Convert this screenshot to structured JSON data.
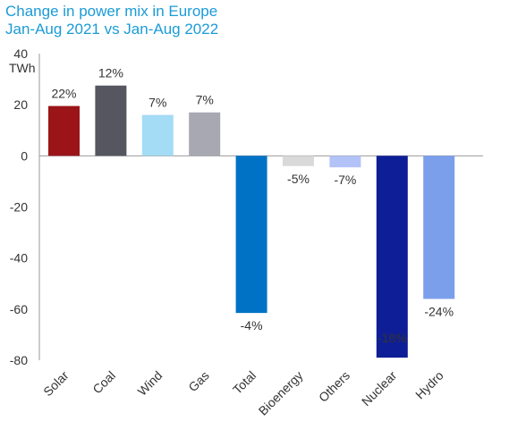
{
  "title": "Change in power mix in Europe",
  "subtitle": "Jan-Aug 2021 vs Jan-Aug 2022",
  "chart_data": {
    "type": "bar",
    "ylabel": "TWh",
    "ylim": [
      -80,
      40
    ],
    "yticks": [
      40,
      20,
      0,
      -20,
      -40,
      -60,
      -80
    ],
    "grid": false,
    "categories": [
      "Solar",
      "Coal",
      "Wind",
      "Gas",
      "Total",
      "Bioenergy",
      "Others",
      "Nuclear",
      "Hydro"
    ],
    "values": [
      19.5,
      27.5,
      16,
      17,
      -61.5,
      -4,
      -4.5,
      -79,
      -56
    ],
    "data_labels": [
      "22%",
      "12%",
      "7%",
      "7%",
      "-4%",
      "-5%",
      "-7%",
      "-18%",
      "-24%"
    ],
    "colors": [
      "#9b1518",
      "#555660",
      "#a4dbf5",
      "#a7a8b2",
      "#0072c5",
      "#d9d9d9",
      "#b3c3f7",
      "#0e1e96",
      "#7b9feb"
    ]
  }
}
